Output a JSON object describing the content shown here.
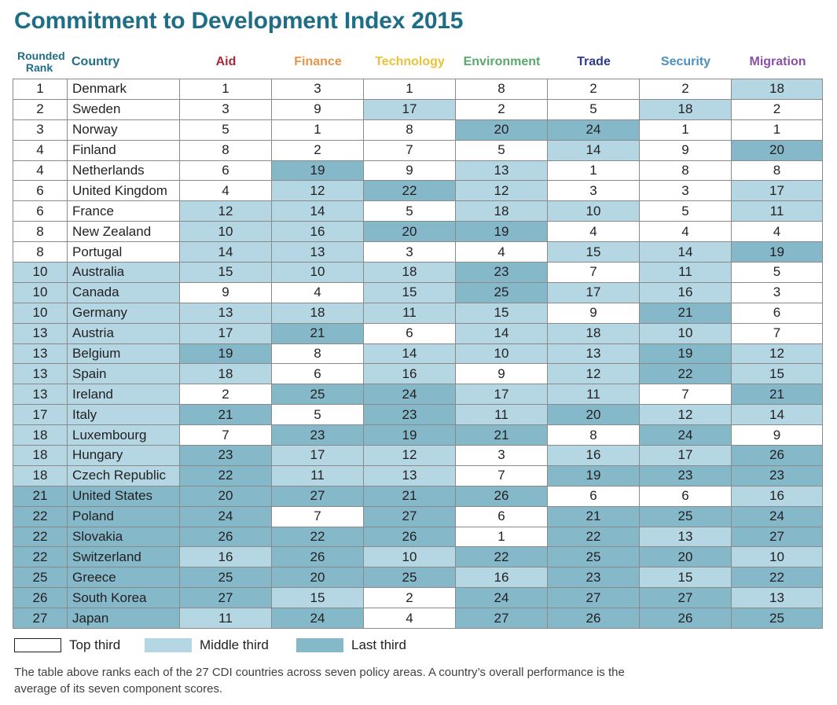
{
  "title": "Commitment to Development Index 2015",
  "headers": {
    "rank": "Rounded Rank",
    "country": "Country",
    "components": [
      "Aid",
      "Finance",
      "Technology",
      "Environment",
      "Trade",
      "Security",
      "Migration"
    ]
  },
  "colors": {
    "title": "#1f6e86",
    "headers": [
      "#a8283a",
      "#e8944a",
      "#e8c23a",
      "#5aa86a",
      "#2e3a8c",
      "#4a90c2",
      "#8a4fa8"
    ],
    "top_third": "#ffffff",
    "middle_third": "#b5d7e3",
    "last_third": "#85b9ca"
  },
  "legend": [
    "Top third",
    "Middle third",
    "Last third"
  ],
  "note": "The table above ranks each of the 27 CDI countries across seven policy areas. A country’s overall performance is the average of its seven component scores.",
  "chart_data": {
    "type": "table",
    "title": "Commitment to Development Index 2015",
    "columns": [
      "Rounded Rank",
      "Country",
      "Aid",
      "Finance",
      "Technology",
      "Environment",
      "Trade",
      "Security",
      "Migration"
    ],
    "rows": [
      {
        "rank": 1,
        "country": "Denmark",
        "scores": [
          1,
          3,
          1,
          8,
          2,
          2,
          18
        ]
      },
      {
        "rank": 2,
        "country": "Sweden",
        "scores": [
          3,
          9,
          17,
          2,
          5,
          18,
          2
        ]
      },
      {
        "rank": 3,
        "country": "Norway",
        "scores": [
          5,
          1,
          8,
          20,
          24,
          1,
          1
        ]
      },
      {
        "rank": 4,
        "country": "Finland",
        "scores": [
          8,
          2,
          7,
          5,
          14,
          9,
          20
        ]
      },
      {
        "rank": 4,
        "country": "Netherlands",
        "scores": [
          6,
          19,
          9,
          13,
          1,
          8,
          8
        ]
      },
      {
        "rank": 6,
        "country": "United Kingdom",
        "scores": [
          4,
          12,
          22,
          12,
          3,
          3,
          17
        ]
      },
      {
        "rank": 6,
        "country": "France",
        "scores": [
          12,
          14,
          5,
          18,
          10,
          5,
          11
        ]
      },
      {
        "rank": 8,
        "country": "New Zealand",
        "scores": [
          10,
          16,
          20,
          19,
          4,
          4,
          4
        ]
      },
      {
        "rank": 8,
        "country": "Portugal",
        "scores": [
          14,
          13,
          3,
          4,
          15,
          14,
          19
        ]
      },
      {
        "rank": 10,
        "country": "Australia",
        "scores": [
          15,
          10,
          18,
          23,
          7,
          11,
          5
        ]
      },
      {
        "rank": 10,
        "country": "Canada",
        "scores": [
          9,
          4,
          15,
          25,
          17,
          16,
          3
        ]
      },
      {
        "rank": 10,
        "country": "Germany",
        "scores": [
          13,
          18,
          11,
          15,
          9,
          21,
          6
        ]
      },
      {
        "rank": 13,
        "country": "Austria",
        "scores": [
          17,
          21,
          6,
          14,
          18,
          10,
          7
        ]
      },
      {
        "rank": 13,
        "country": "Belgium",
        "scores": [
          19,
          8,
          14,
          10,
          13,
          19,
          12
        ]
      },
      {
        "rank": 13,
        "country": "Spain",
        "scores": [
          18,
          6,
          16,
          9,
          12,
          22,
          15
        ]
      },
      {
        "rank": 13,
        "country": "Ireland",
        "scores": [
          2,
          25,
          24,
          17,
          11,
          7,
          21
        ]
      },
      {
        "rank": 17,
        "country": "Italy",
        "scores": [
          21,
          5,
          23,
          11,
          20,
          12,
          14
        ]
      },
      {
        "rank": 18,
        "country": "Luxembourg",
        "scores": [
          7,
          23,
          19,
          21,
          8,
          24,
          9
        ]
      },
      {
        "rank": 18,
        "country": "Hungary",
        "scores": [
          23,
          17,
          12,
          3,
          16,
          17,
          26
        ]
      },
      {
        "rank": 18,
        "country": "Czech Republic",
        "scores": [
          22,
          11,
          13,
          7,
          19,
          23,
          23
        ]
      },
      {
        "rank": 21,
        "country": "United States",
        "scores": [
          20,
          27,
          21,
          26,
          6,
          6,
          16
        ]
      },
      {
        "rank": 22,
        "country": "Poland",
        "scores": [
          24,
          7,
          27,
          6,
          21,
          25,
          24
        ]
      },
      {
        "rank": 22,
        "country": "Slovakia",
        "scores": [
          26,
          22,
          26,
          1,
          22,
          13,
          27
        ]
      },
      {
        "rank": 22,
        "country": "Switzerland",
        "scores": [
          16,
          26,
          10,
          22,
          25,
          20,
          10
        ]
      },
      {
        "rank": 25,
        "country": "Greece",
        "scores": [
          25,
          20,
          25,
          16,
          23,
          15,
          22
        ]
      },
      {
        "rank": 26,
        "country": "South Korea",
        "scores": [
          27,
          15,
          2,
          24,
          27,
          27,
          13
        ]
      },
      {
        "rank": 27,
        "country": "Japan",
        "scores": [
          11,
          24,
          4,
          27,
          26,
          26,
          25
        ]
      }
    ],
    "legend": [
      "Top third",
      "Middle third",
      "Last third"
    ]
  }
}
